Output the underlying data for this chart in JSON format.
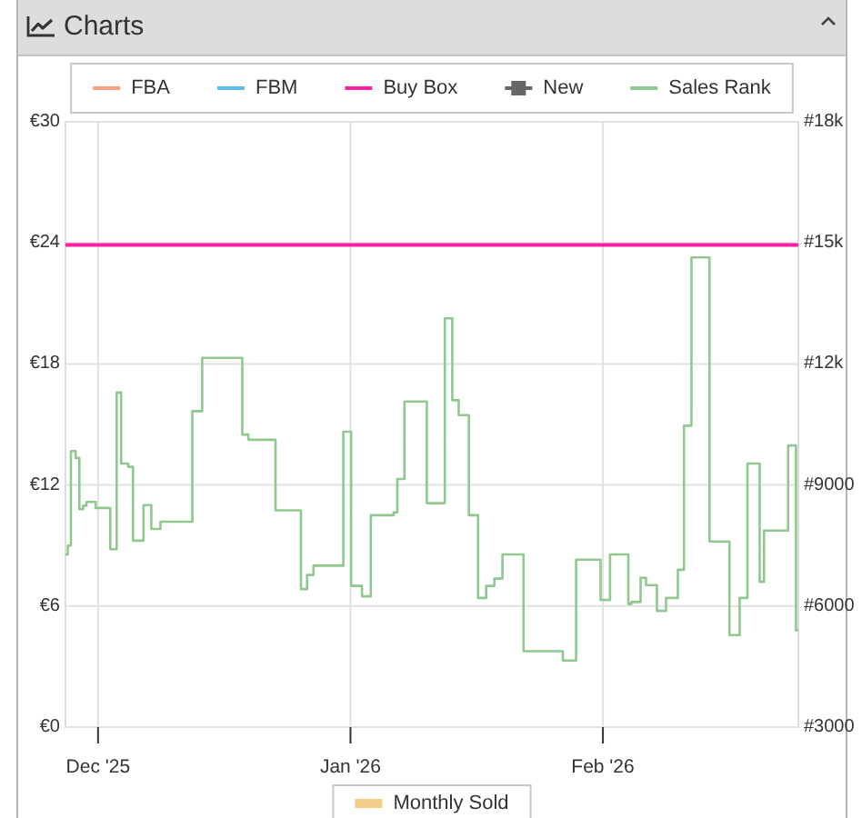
{
  "chart_data": [
    {
      "type": "line",
      "title": "Charts",
      "xlim": [
        "2025-11-27",
        "2026-02-25"
      ],
      "xticks": [
        {
          "value": "2025-12-01",
          "label": "Dec '25"
        },
        {
          "value": "2026-01-01",
          "label": "Jan '26"
        },
        {
          "value": "2026-02-01",
          "label": "Feb '26"
        }
      ],
      "ylim": [
        0,
        30
      ],
      "yticks": [
        {
          "value": 0,
          "label": "€0"
        },
        {
          "value": 6,
          "label": "€6"
        },
        {
          "value": 12,
          "label": "€12"
        },
        {
          "value": 18,
          "label": "€18"
        },
        {
          "value": 24,
          "label": "€24"
        },
        {
          "value": 30,
          "label": "€30"
        }
      ],
      "y2lim": [
        3000,
        18000
      ],
      "y2ticks": [
        {
          "value": 3000,
          "label": "#3000"
        },
        {
          "value": 6000,
          "label": "#6000"
        },
        {
          "value": 9000,
          "label": "#9000"
        },
        {
          "value": 12000,
          "label": "#12k"
        },
        {
          "value": 15000,
          "label": "#15k"
        },
        {
          "value": 18000,
          "label": "#18k"
        }
      ],
      "grid": true,
      "legend": "top",
      "series": [
        {
          "name": "FBA",
          "color": "#ff9f80"
        },
        {
          "name": "FBM",
          "color": "#5bbcf0"
        },
        {
          "name": "Buy Box",
          "color": "#ff1fa0",
          "x": [
            "2025-11-27",
            "2026-02-25"
          ],
          "values": [
            23.9,
            23.9
          ]
        },
        {
          "name": "New",
          "color": "#666666",
          "marker": "square"
        },
        {
          "name": "Sales Rank",
          "type": "step",
          "axis": "y2",
          "color": "#8fc98f",
          "x": [
            "2025-11-27T00:00",
            "2025-11-27T07:00",
            "2025-11-27T16:00",
            "2025-11-28T06:00",
            "2025-11-28T17:00",
            "2025-11-29T04:00",
            "2025-11-29T14:00",
            "2025-11-30T17:00",
            "2025-12-02T12:00",
            "2025-12-03T07:00",
            "2025-12-03T20:00",
            "2025-12-04T17:00",
            "2025-12-05T07:00",
            "2025-12-06T14:00",
            "2025-12-07T13:00",
            "2025-12-08T16:00",
            "2025-12-12T14:00",
            "2025-12-13T19:00",
            "2025-12-18T17:00",
            "2025-12-19T11:00",
            "2025-12-22T19:00",
            "2025-12-25T22:00",
            "2025-12-26T16:00",
            "2025-12-27T11:00",
            "2025-12-31T03:00",
            "2026-01-01T02:00",
            "2026-01-02T10:00",
            "2026-01-03T12:00",
            "2026-01-06T07:00",
            "2026-01-06T18:00",
            "2026-01-07T15:00",
            "2026-01-10T09:00",
            "2026-01-12T14:00",
            "2026-01-13T12:00",
            "2026-01-14T07:00",
            "2026-01-15T13:00",
            "2026-01-16T16:00",
            "2026-01-17T16:00",
            "2026-01-18T16:00",
            "2026-01-19T16:00",
            "2026-01-22T06:00",
            "2026-01-27T02:00",
            "2026-01-28T17:00",
            "2026-01-31T17:00",
            "2026-02-01T21:00",
            "2026-02-04T03:00",
            "2026-02-04T12:00",
            "2026-02-05T15:00",
            "2026-02-06T07:00",
            "2026-02-07T15:00",
            "2026-02-08T18:00",
            "2026-02-10T05:00",
            "2026-02-10T23:00",
            "2026-02-11T21:00",
            "2026-02-14T02:00",
            "2026-02-16T13:00",
            "2026-02-17T19:00",
            "2026-02-18T18:00",
            "2026-02-20T06:00",
            "2026-02-20T19:00",
            "2026-02-23T18:00",
            "2026-02-24T17:00",
            "2026-02-25T00:00"
          ],
          "values": [
            7280,
            7500,
            9840,
            9670,
            8400,
            8490,
            8580,
            8430,
            7410,
            11290,
            9530,
            9450,
            7620,
            8500,
            7910,
            8090,
            10830,
            12150,
            10250,
            10120,
            8370,
            6420,
            6770,
            7000,
            10320,
            6500,
            6240,
            8250,
            8320,
            9150,
            11070,
            8550,
            13130,
            11100,
            10730,
            8250,
            6200,
            6500,
            6680,
            7280,
            4880,
            4650,
            7150,
            6150,
            7280,
            6050,
            6100,
            6700,
            6520,
            5880,
            6200,
            6900,
            10470,
            14640,
            7600,
            5280,
            6200,
            9530,
            6600,
            7870,
            9980,
            5400,
            5400
          ]
        }
      ]
    },
    {
      "type": "other",
      "legend": "top",
      "series": [
        {
          "name": "Monthly Sold",
          "color": "#f0c674"
        }
      ]
    }
  ]
}
